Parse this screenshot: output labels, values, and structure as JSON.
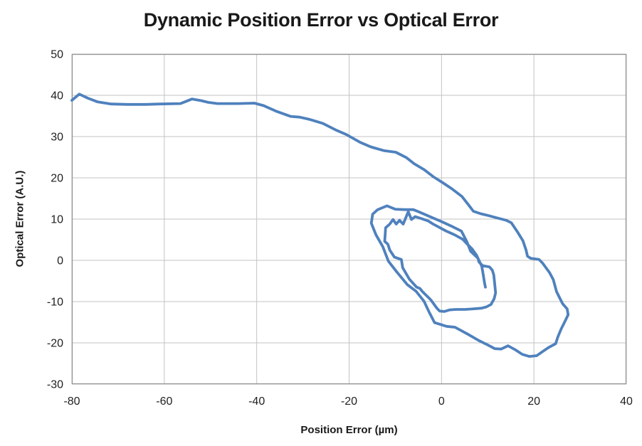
{
  "chart": {
    "title": "Dynamic Position Error vs Optical Error",
    "x_axis_label": "Position Error (µm)",
    "y_axis_label": "Optical Error (A.U.)"
  },
  "chart_data": {
    "type": "line",
    "title": "Dynamic Position Error vs Optical Error",
    "xlabel": "Position Error (µm)",
    "ylabel": "Optical Error (A.U.)",
    "xlim": [
      -80,
      40
    ],
    "ylim": [
      -30,
      50
    ],
    "x_ticks": [
      -80,
      -60,
      -40,
      -20,
      0,
      20,
      40
    ],
    "y_ticks": [
      50,
      40,
      30,
      20,
      10,
      0,
      -10,
      -20,
      -30
    ],
    "grid": true,
    "legend": false,
    "line_color": "#4F81BD",
    "grid_color": "#C3C3C3",
    "border_color": "#969696",
    "line_width": 3.8,
    "series": [
      {
        "name": "position-vs-optical-error-trajectory",
        "points": [
          [
            -80,
            38.8
          ],
          [
            -78.4,
            40.3
          ],
          [
            -76.5,
            39.3
          ],
          [
            -74.4,
            38.4
          ],
          [
            -71.5,
            37.9
          ],
          [
            -68,
            37.8
          ],
          [
            -64,
            37.8
          ],
          [
            -61,
            37.9
          ],
          [
            -56.5,
            38.0
          ],
          [
            -54,
            39.1
          ],
          [
            -52,
            38.7
          ],
          [
            -50.5,
            38.3
          ],
          [
            -48.5,
            38.0
          ],
          [
            -44,
            38.0
          ],
          [
            -40.5,
            38.1
          ],
          [
            -38.5,
            37.5
          ],
          [
            -35.7,
            36.1
          ],
          [
            -32.7,
            34.9
          ],
          [
            -30.7,
            34.7
          ],
          [
            -28.7,
            34.2
          ],
          [
            -25.7,
            33.2
          ],
          [
            -22.7,
            31.5
          ],
          [
            -20.6,
            30.5
          ],
          [
            -17.6,
            28.6
          ],
          [
            -15.3,
            27.5
          ],
          [
            -12.5,
            26.6
          ],
          [
            -9.9,
            26.2
          ],
          [
            -7.6,
            24.9
          ],
          [
            -5.9,
            23.4
          ],
          [
            -3.8,
            22.0
          ],
          [
            -1.8,
            20.3
          ],
          [
            0.3,
            18.8
          ],
          [
            2.3,
            17.3
          ],
          [
            4.4,
            15.5
          ],
          [
            5.8,
            13.5
          ],
          [
            6.9,
            11.9
          ],
          [
            8.5,
            11.3
          ],
          [
            10,
            10.9
          ],
          [
            12,
            10.3
          ],
          [
            14,
            9.7
          ],
          [
            15.1,
            9.1
          ],
          [
            16.5,
            6.8
          ],
          [
            17.6,
            4.8
          ],
          [
            18.3,
            2.5
          ],
          [
            18.6,
            1.0
          ],
          [
            19.3,
            0.5
          ],
          [
            21.1,
            0.2
          ],
          [
            21.9,
            -0.7
          ],
          [
            23.4,
            -3.0
          ],
          [
            24.2,
            -4.7
          ],
          [
            24.9,
            -7.6
          ],
          [
            26.2,
            -10.5
          ],
          [
            27.2,
            -11.8
          ],
          [
            27.4,
            -13.2
          ],
          [
            26.8,
            -14.6
          ],
          [
            25.9,
            -16.6
          ],
          [
            25.2,
            -18.5
          ],
          [
            24.7,
            -20.2
          ],
          [
            23.2,
            -21.1
          ],
          [
            22.4,
            -21.7
          ],
          [
            20.6,
            -23.1
          ],
          [
            19.0,
            -23.3
          ],
          [
            17.5,
            -22.8
          ],
          [
            16.0,
            -21.7
          ],
          [
            14.4,
            -20.7
          ],
          [
            12.9,
            -21.5
          ],
          [
            11.5,
            -21.4
          ],
          [
            10.0,
            -20.5
          ],
          [
            8.0,
            -19.4
          ],
          [
            5.7,
            -17.9
          ],
          [
            2.9,
            -16.2
          ],
          [
            1.1,
            -16.0
          ],
          [
            -1.5,
            -15.1
          ],
          [
            -2.7,
            -12.5
          ],
          [
            -3.8,
            -9.9
          ],
          [
            -5.5,
            -7.5
          ],
          [
            -7.4,
            -5.9
          ],
          [
            -9.7,
            -2.8
          ],
          [
            -11.5,
            -0.2
          ],
          [
            -12.7,
            3.3
          ],
          [
            -14.2,
            6.2
          ],
          [
            -15.2,
            9.0
          ],
          [
            -14.9,
            11.2
          ],
          [
            -13.8,
            12.3
          ],
          [
            -11.8,
            13.2
          ],
          [
            -10.0,
            12.4
          ],
          [
            -8.0,
            12.3
          ],
          [
            -6.1,
            12.3
          ],
          [
            -4.8,
            11.7
          ],
          [
            -2.3,
            10.5
          ],
          [
            0.0,
            9.4
          ],
          [
            2.3,
            8.2
          ],
          [
            4.3,
            7.1
          ],
          [
            5.5,
            4.5
          ],
          [
            6.3,
            2.2
          ],
          [
            7.9,
            0.5
          ],
          [
            8.1,
            -0.4
          ],
          [
            8.9,
            -1.3
          ],
          [
            10.4,
            -1.6
          ],
          [
            11.0,
            -2.4
          ],
          [
            11.3,
            -3.5
          ],
          [
            11.5,
            -5.6
          ],
          [
            11.7,
            -7.9
          ],
          [
            11.4,
            -9.3
          ],
          [
            10.7,
            -10.7
          ],
          [
            9.7,
            -11.3
          ],
          [
            8.6,
            -11.6
          ],
          [
            6.5,
            -11.8
          ],
          [
            5.1,
            -11.9
          ],
          [
            3.1,
            -11.9
          ],
          [
            1.8,
            -12.0
          ],
          [
            0.6,
            -12.4
          ],
          [
            -0.4,
            -12.3
          ],
          [
            -1.0,
            -11.6
          ],
          [
            -2.3,
            -9.6
          ],
          [
            -4.1,
            -7.6
          ],
          [
            -4.7,
            -6.8
          ],
          [
            -5.4,
            -6.5
          ],
          [
            -7.0,
            -4.5
          ],
          [
            -8.4,
            -1.8
          ],
          [
            -8.7,
            0.2
          ],
          [
            -10.2,
            0.8
          ],
          [
            -11.2,
            2.5
          ],
          [
            -11.6,
            3.9
          ],
          [
            -12.3,
            4.6
          ],
          [
            -12.1,
            7.9
          ],
          [
            -11.2,
            8.8
          ],
          [
            -10.5,
            9.9
          ],
          [
            -9.8,
            8.8
          ],
          [
            -9.1,
            9.7
          ],
          [
            -8.3,
            8.8
          ],
          [
            -7.2,
            11.8
          ],
          [
            -6.5,
            9.9
          ],
          [
            -5.7,
            10.6
          ],
          [
            -4.6,
            10.2
          ],
          [
            -3.0,
            9.6
          ],
          [
            -1.8,
            8.8
          ],
          [
            1.0,
            7.1
          ],
          [
            2.8,
            6.2
          ],
          [
            4.6,
            5.1
          ],
          [
            5.6,
            3.9
          ],
          [
            6.6,
            2.8
          ],
          [
            7.6,
            1.2
          ],
          [
            8.1,
            0.0
          ],
          [
            8.7,
            -1.4
          ],
          [
            8.9,
            -2.6
          ],
          [
            9.1,
            -4.0
          ],
          [
            9.3,
            -5.4
          ],
          [
            9.5,
            -6.5
          ]
        ]
      }
    ]
  }
}
